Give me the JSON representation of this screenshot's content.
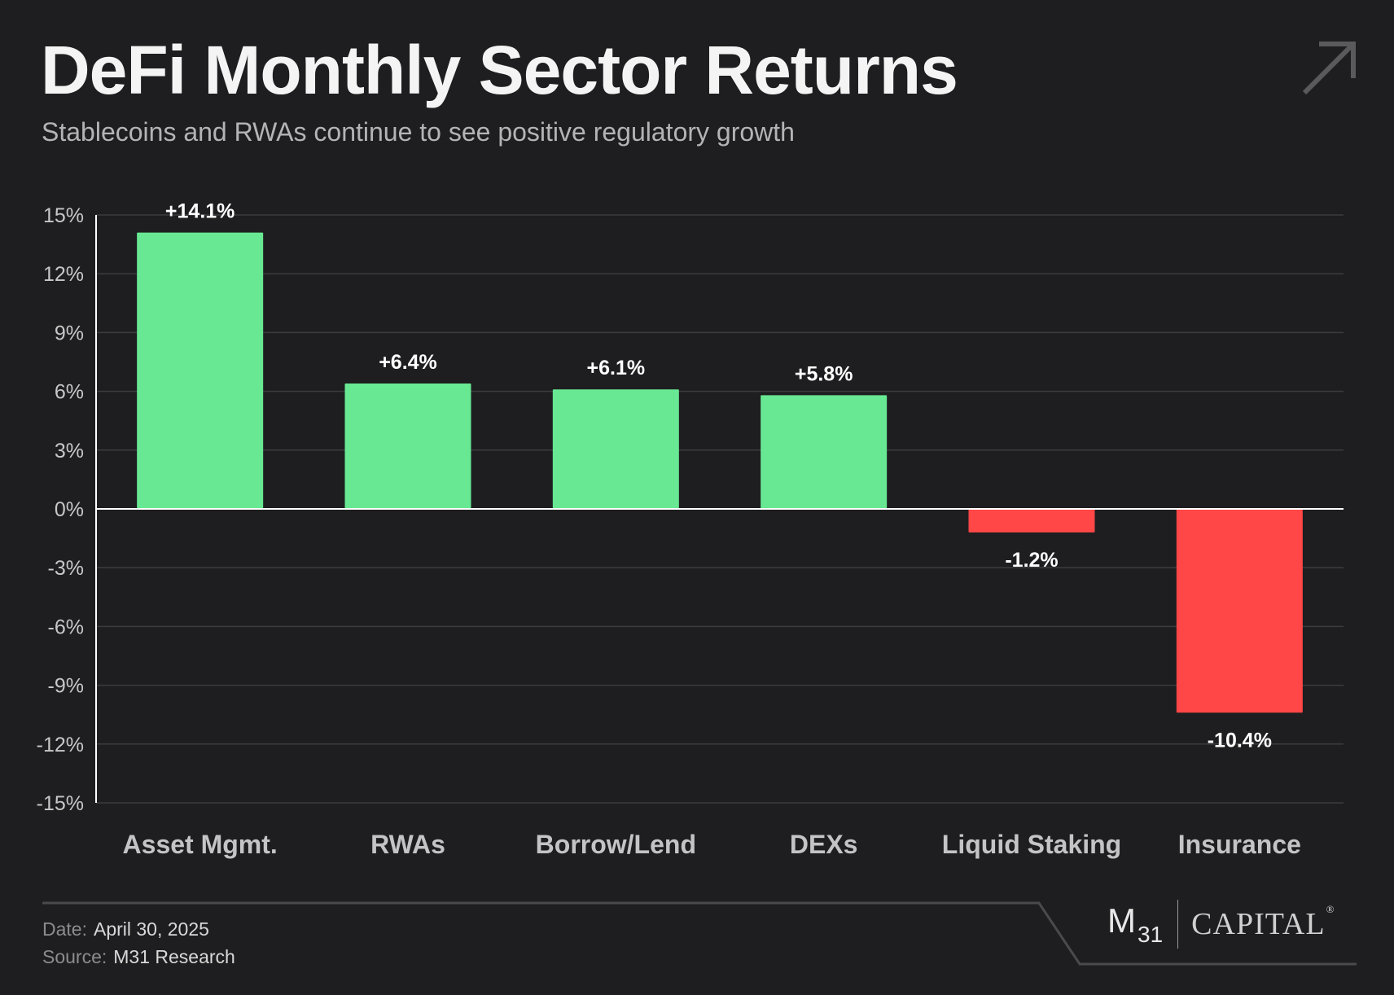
{
  "header": {
    "title": "DeFi Monthly Sector Returns",
    "subtitle": "Stablecoins and RWAs continue to see positive regulatory growth"
  },
  "icons": {
    "corner": "arrow-up-right-icon"
  },
  "colors": {
    "background": "#1e1e20",
    "positive": "#68e893",
    "negative": "#ff4747",
    "grid": "#3c3c3e",
    "tick_text": "#c8c8c8",
    "category_text": "#c4c4c6"
  },
  "chart_data": {
    "type": "bar",
    "categories": [
      "Asset Mgmt.",
      "RWAs",
      "Borrow/Lend",
      "DEXs",
      "Liquid Staking",
      "Insurance"
    ],
    "values": [
      14.1,
      6.4,
      6.1,
      5.8,
      -1.2,
      -10.4
    ],
    "value_labels": [
      "+14.1%",
      "+6.4%",
      "+6.1%",
      "+5.8%",
      "-1.2%",
      "-10.4%"
    ],
    "ylim": [
      -15,
      15
    ],
    "yticks": [
      15,
      12,
      9,
      6,
      3,
      0,
      -3,
      -6,
      -9,
      -12,
      -15
    ],
    "ytick_labels": [
      "15%",
      "12%",
      "9%",
      "6%",
      "3%",
      "0%",
      "-3%",
      "-6%",
      "-9%",
      "-12%",
      "-15%"
    ],
    "xlabel": "",
    "ylabel": "",
    "grid": true,
    "legend": "none"
  },
  "footer": {
    "date_key": "Date:",
    "date_value": "April 30, 2025",
    "source_key": "Source:",
    "source_value": "M31 Research",
    "logo_mark": "M",
    "logo_sub": "31",
    "logo_text": "CAPITAL",
    "logo_reg": "®"
  }
}
